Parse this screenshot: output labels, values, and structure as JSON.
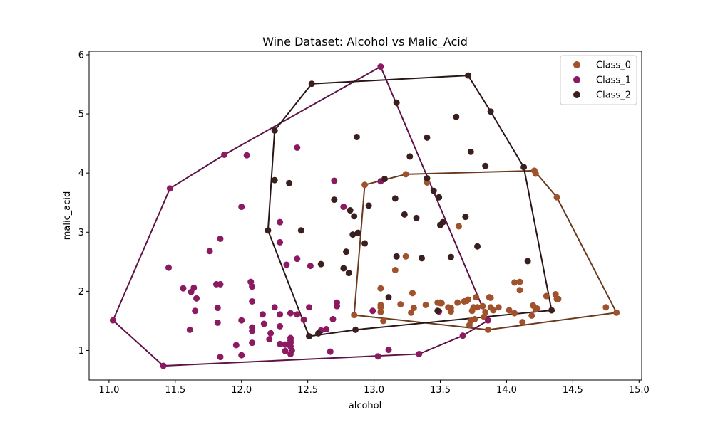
{
  "chart_data": {
    "type": "scatter",
    "title": "Wine Dataset: Alcohol vs Malic_Acid",
    "xlabel": "alcohol",
    "ylabel": "malic_acid",
    "xlim": [
      10.85,
      15.02
    ],
    "ylim": [
      0.5,
      6.06
    ],
    "xticks": [
      11.0,
      11.5,
      12.0,
      12.5,
      13.0,
      13.5,
      14.0,
      14.5,
      15.0
    ],
    "yticks": [
      1,
      2,
      3,
      4,
      5,
      6
    ],
    "grid": false,
    "legend_position": "top-right",
    "series": [
      {
        "name": "Class_0",
        "color": "#a0522d",
        "hull_color": "#6b3a1e",
        "points": [
          [
            13.05,
            2.05
          ],
          [
            13.05,
            1.77
          ],
          [
            13.05,
            1.73
          ],
          [
            13.05,
            1.65
          ],
          [
            13.07,
            1.5
          ],
          [
            13.2,
            1.78
          ],
          [
            13.24,
            2.59
          ],
          [
            13.28,
            1.64
          ],
          [
            13.29,
            1.97
          ],
          [
            13.3,
            1.72
          ],
          [
            13.16,
            2.36
          ],
          [
            13.24,
            3.98
          ],
          [
            13.39,
            1.77
          ],
          [
            13.4,
            3.84
          ],
          [
            13.48,
            1.81
          ],
          [
            13.49,
            1.66
          ],
          [
            13.5,
            1.81
          ],
          [
            13.51,
            1.8
          ],
          [
            13.56,
            1.73
          ],
          [
            13.58,
            1.66
          ],
          [
            13.63,
            1.81
          ],
          [
            13.64,
            3.1
          ],
          [
            13.68,
            1.83
          ],
          [
            13.71,
            1.86
          ],
          [
            13.72,
            1.43
          ],
          [
            13.73,
            1.5
          ],
          [
            13.74,
            1.67
          ],
          [
            13.75,
            1.73
          ],
          [
            13.76,
            1.53
          ],
          [
            13.77,
            1.9
          ],
          [
            13.78,
            1.73
          ],
          [
            13.82,
            1.75
          ],
          [
            13.83,
            1.57
          ],
          [
            13.84,
            1.65
          ],
          [
            13.86,
            1.35
          ],
          [
            13.87,
            1.9
          ],
          [
            13.88,
            1.89
          ],
          [
            13.88,
            1.73
          ],
          [
            13.94,
            1.73
          ],
          [
            14.02,
            1.68
          ],
          [
            14.06,
            1.63
          ],
          [
            14.06,
            2.15
          ],
          [
            14.1,
            2.16
          ],
          [
            14.1,
            2.02
          ],
          [
            14.12,
            1.48
          ],
          [
            14.19,
            1.59
          ],
          [
            14.2,
            1.76
          ],
          [
            14.21,
            4.04
          ],
          [
            14.22,
            1.7
          ],
          [
            14.22,
            3.99
          ],
          [
            14.23,
            1.71
          ],
          [
            14.3,
            1.92
          ],
          [
            14.37,
            1.95
          ],
          [
            14.38,
            1.87
          ],
          [
            14.38,
            3.59
          ],
          [
            14.39,
            1.87
          ],
          [
            14.75,
            1.73
          ],
          [
            14.83,
            1.64
          ],
          [
            12.85,
            1.6
          ],
          [
            12.93,
            3.8
          ],
          [
            13.9,
            1.68
          ],
          [
            13.5,
            1.8
          ],
          [
            13.7,
            1.84
          ],
          [
            13.58,
            1.72
          ]
        ],
        "hull": [
          [
            14.83,
            1.64
          ],
          [
            14.38,
            3.59
          ],
          [
            14.21,
            4.04
          ],
          [
            13.24,
            3.98
          ],
          [
            12.93,
            3.8
          ],
          [
            12.85,
            1.6
          ],
          [
            13.86,
            1.35
          ],
          [
            14.83,
            1.64
          ]
        ]
      },
      {
        "name": "Class_1",
        "color": "#8b1a62",
        "hull_color": "#5e1245",
        "points": [
          [
            12.37,
            0.94
          ],
          [
            12.33,
            1.1
          ],
          [
            12.64,
            1.36
          ],
          [
            13.67,
            1.25
          ],
          [
            12.37,
            1.13
          ],
          [
            12.17,
            1.45
          ],
          [
            12.37,
            1.21
          ],
          [
            13.11,
            1.01
          ],
          [
            12.37,
            1.17
          ],
          [
            13.34,
            0.94
          ],
          [
            12.21,
            1.19
          ],
          [
            12.29,
            1.61
          ],
          [
            13.86,
            1.51
          ],
          [
            13.49,
            1.66
          ],
          [
            12.99,
            1.67
          ],
          [
            11.96,
            1.09
          ],
          [
            11.66,
            1.88
          ],
          [
            13.03,
            0.9
          ],
          [
            11.84,
            2.89
          ],
          [
            12.33,
            0.99
          ],
          [
            12.7,
            3.87
          ],
          [
            12.0,
            0.92
          ],
          [
            12.72,
            1.81
          ],
          [
            12.08,
            1.13
          ],
          [
            13.05,
            3.86
          ],
          [
            11.84,
            0.89
          ],
          [
            12.67,
            0.98
          ],
          [
            12.16,
            1.61
          ],
          [
            11.65,
            1.67
          ],
          [
            11.64,
            2.06
          ],
          [
            12.08,
            1.33
          ],
          [
            12.08,
            1.83
          ],
          [
            12.0,
            1.51
          ],
          [
            12.69,
            1.53
          ],
          [
            12.29,
            2.83
          ],
          [
            11.62,
            1.99
          ],
          [
            12.47,
            1.52
          ],
          [
            11.81,
            2.12
          ],
          [
            12.29,
            1.41
          ],
          [
            12.37,
            1.07
          ],
          [
            12.29,
            3.17
          ],
          [
            12.08,
            2.08
          ],
          [
            12.6,
            1.34
          ],
          [
            12.34,
            2.45
          ],
          [
            11.82,
            1.72
          ],
          [
            12.51,
            1.73
          ],
          [
            12.42,
            2.55
          ],
          [
            12.25,
            1.73
          ],
          [
            12.72,
            1.75
          ],
          [
            12.22,
            1.29
          ],
          [
            11.61,
            1.35
          ],
          [
            11.46,
            3.74
          ],
          [
            12.52,
            2.43
          ],
          [
            11.76,
            2.68
          ],
          [
            11.41,
            0.74
          ],
          [
            12.08,
            1.39
          ],
          [
            11.03,
            1.51
          ],
          [
            11.82,
            1.47
          ],
          [
            12.42,
            4.43
          ],
          [
            12.77,
            3.43
          ],
          [
            12.0,
            3.43
          ],
          [
            11.45,
            2.4
          ],
          [
            11.56,
            2.05
          ],
          [
            12.42,
            1.61
          ],
          [
            13.05,
            5.8
          ],
          [
            11.87,
            4.31
          ],
          [
            12.07,
            2.16
          ],
          [
            11.84,
            2.12
          ],
          [
            12.04,
            4.3
          ],
          [
            12.37,
            1.63
          ],
          [
            12.29,
            1.11
          ],
          [
            12.38,
            1.0
          ]
        ],
        "hull": [
          [
            13.05,
            5.8
          ],
          [
            13.86,
            1.51
          ],
          [
            13.67,
            1.25
          ],
          [
            13.34,
            0.94
          ],
          [
            11.41,
            0.74
          ],
          [
            11.03,
            1.51
          ],
          [
            11.46,
            3.74
          ],
          [
            11.87,
            4.31
          ],
          [
            13.05,
            5.8
          ]
        ]
      },
      {
        "name": "Class_2",
        "color": "#3b1f1f",
        "hull_color": "#2a1515",
        "points": [
          [
            12.86,
            1.35
          ],
          [
            12.88,
            2.99
          ],
          [
            12.81,
            2.31
          ],
          [
            12.7,
            3.55
          ],
          [
            12.51,
            1.24
          ],
          [
            12.6,
            2.46
          ],
          [
            12.25,
            4.72
          ],
          [
            12.53,
            5.51
          ],
          [
            13.49,
            3.59
          ],
          [
            12.84,
            2.96
          ],
          [
            12.93,
            2.81
          ],
          [
            13.36,
            2.56
          ],
          [
            13.52,
            3.17
          ],
          [
            13.62,
            4.95
          ],
          [
            12.25,
            3.88
          ],
          [
            13.16,
            3.57
          ],
          [
            13.88,
            5.04
          ],
          [
            12.87,
            4.61
          ],
          [
            13.32,
            3.24
          ],
          [
            13.08,
            3.9
          ],
          [
            13.5,
            3.12
          ],
          [
            12.79,
            2.67
          ],
          [
            13.11,
            1.9
          ],
          [
            13.23,
            3.3
          ],
          [
            12.58,
            1.29
          ],
          [
            13.17,
            5.19
          ],
          [
            13.84,
            4.12
          ],
          [
            12.45,
            3.03
          ],
          [
            14.34,
            1.68
          ],
          [
            13.48,
            1.67
          ],
          [
            12.36,
            3.83
          ],
          [
            13.69,
            3.26
          ],
          [
            12.85,
            3.27
          ],
          [
            12.96,
            3.45
          ],
          [
            13.78,
            2.76
          ],
          [
            13.73,
            4.36
          ],
          [
            13.45,
            3.7
          ],
          [
            12.82,
            3.37
          ],
          [
            13.58,
            2.58
          ],
          [
            13.4,
            4.6
          ],
          [
            12.2,
            3.03
          ],
          [
            12.77,
            2.39
          ],
          [
            14.16,
            2.51
          ],
          [
            13.71,
            5.65
          ],
          [
            13.4,
            3.91
          ],
          [
            13.27,
            4.28
          ],
          [
            13.17,
            2.59
          ],
          [
            14.13,
            4.1
          ]
        ],
        "hull": [
          [
            13.71,
            5.65
          ],
          [
            13.88,
            5.04
          ],
          [
            14.13,
            4.1
          ],
          [
            14.34,
            1.68
          ],
          [
            12.86,
            1.35
          ],
          [
            12.51,
            1.24
          ],
          [
            12.2,
            3.03
          ],
          [
            12.25,
            4.72
          ],
          [
            12.53,
            5.51
          ],
          [
            13.71,
            5.65
          ]
        ]
      }
    ]
  }
}
